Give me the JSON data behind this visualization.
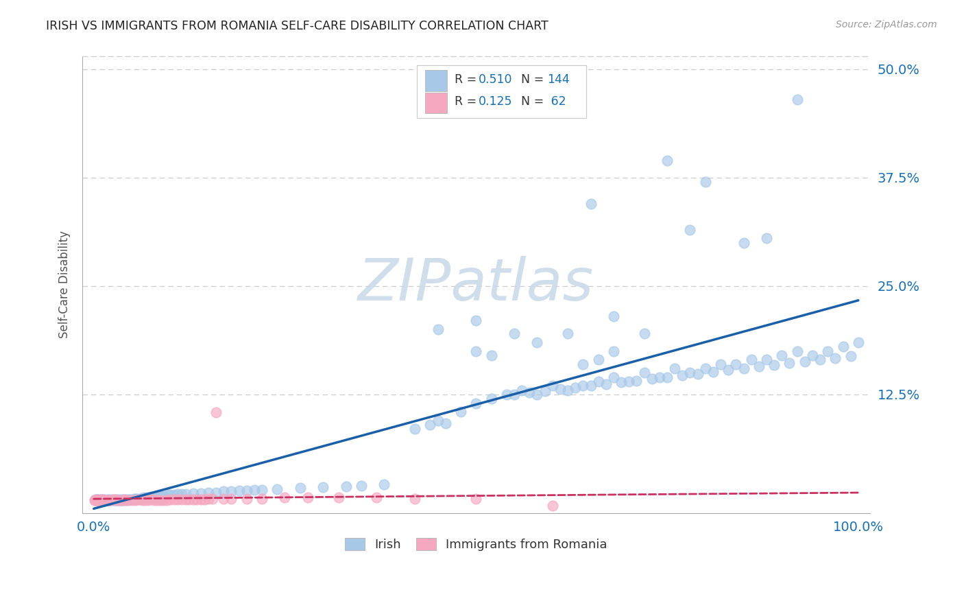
{
  "title": "IRISH VS IMMIGRANTS FROM ROMANIA SELF-CARE DISABILITY CORRELATION CHART",
  "source": "Source: ZipAtlas.com",
  "ylabel": "Self-Care Disability",
  "irish_R": 0.51,
  "irish_N": 144,
  "romania_R": 0.125,
  "romania_N": 62,
  "irish_color": "#a8c8e8",
  "irish_line_color": "#1a5fa8",
  "romania_color": "#f5a8c0",
  "romania_line_color": "#c83060",
  "axis_label_color": "#1a6faf",
  "title_color": "#222222",
  "source_color": "#999999",
  "grid_color": "#cccccc",
  "watermark_color": "#c8d8e8",
  "background_color": "#ffffff",
  "xlim": [
    -0.015,
    1.015
  ],
  "ylim": [
    -0.012,
    0.515
  ],
  "right_yticks": [
    0.125,
    0.25,
    0.375,
    0.5
  ],
  "right_ytick_labels": [
    "12.5%",
    "25.0%",
    "37.5%",
    "50.0%"
  ],
  "xtick_vals": [
    0.0,
    1.0
  ],
  "xtick_labels": [
    "0.0%",
    "100.0%"
  ],
  "legend_xtick_label": [
    "Irish",
    "Immigrants from Romania"
  ],
  "irish_x": [
    0.001,
    0.002,
    0.003,
    0.004,
    0.005,
    0.006,
    0.007,
    0.008,
    0.009,
    0.01,
    0.011,
    0.012,
    0.013,
    0.014,
    0.015,
    0.016,
    0.017,
    0.018,
    0.019,
    0.02,
    0.021,
    0.022,
    0.023,
    0.024,
    0.025,
    0.026,
    0.027,
    0.028,
    0.029,
    0.03,
    0.031,
    0.032,
    0.033,
    0.034,
    0.035,
    0.036,
    0.037,
    0.038,
    0.039,
    0.04,
    0.041,
    0.042,
    0.043,
    0.045,
    0.047,
    0.049,
    0.051,
    0.053,
    0.055,
    0.057,
    0.06,
    0.062,
    0.065,
    0.068,
    0.07,
    0.073,
    0.075,
    0.078,
    0.08,
    0.083,
    0.086,
    0.09,
    0.093,
    0.097,
    0.1,
    0.105,
    0.11,
    0.115,
    0.12,
    0.13,
    0.14,
    0.15,
    0.16,
    0.17,
    0.18,
    0.19,
    0.2,
    0.21,
    0.22,
    0.24,
    0.27,
    0.3,
    0.33,
    0.35,
    0.38,
    0.42,
    0.45,
    0.48,
    0.5,
    0.52,
    0.54,
    0.56,
    0.58,
    0.6,
    0.62,
    0.64,
    0.66,
    0.68,
    0.7,
    0.72,
    0.74,
    0.76,
    0.78,
    0.8,
    0.82,
    0.84,
    0.86,
    0.88,
    0.9,
    0.92,
    0.94,
    0.96,
    0.98,
    1.0,
    0.55,
    0.57,
    0.59,
    0.61,
    0.63,
    0.65,
    0.67,
    0.69,
    0.71,
    0.73,
    0.75,
    0.77,
    0.79,
    0.81,
    0.83,
    0.85,
    0.87,
    0.89,
    0.91,
    0.93,
    0.95,
    0.97,
    0.99,
    0.44,
    0.46
  ],
  "irish_y": [
    0.003,
    0.004,
    0.003,
    0.004,
    0.003,
    0.003,
    0.004,
    0.003,
    0.003,
    0.004,
    0.003,
    0.004,
    0.003,
    0.004,
    0.003,
    0.003,
    0.004,
    0.003,
    0.003,
    0.004,
    0.003,
    0.003,
    0.004,
    0.003,
    0.003,
    0.004,
    0.003,
    0.003,
    0.004,
    0.003,
    0.003,
    0.004,
    0.003,
    0.003,
    0.004,
    0.003,
    0.003,
    0.004,
    0.003,
    0.004,
    0.003,
    0.004,
    0.003,
    0.004,
    0.004,
    0.004,
    0.004,
    0.005,
    0.005,
    0.005,
    0.005,
    0.005,
    0.006,
    0.006,
    0.006,
    0.006,
    0.007,
    0.007,
    0.007,
    0.007,
    0.008,
    0.008,
    0.008,
    0.009,
    0.009,
    0.009,
    0.01,
    0.01,
    0.01,
    0.011,
    0.011,
    0.012,
    0.012,
    0.013,
    0.013,
    0.014,
    0.014,
    0.015,
    0.015,
    0.016,
    0.017,
    0.018,
    0.019,
    0.02,
    0.021,
    0.085,
    0.095,
    0.105,
    0.115,
    0.12,
    0.125,
    0.13,
    0.125,
    0.135,
    0.13,
    0.135,
    0.14,
    0.145,
    0.14,
    0.15,
    0.145,
    0.155,
    0.15,
    0.155,
    0.16,
    0.16,
    0.165,
    0.165,
    0.17,
    0.175,
    0.17,
    0.175,
    0.18,
    0.185,
    0.125,
    0.127,
    0.129,
    0.131,
    0.133,
    0.135,
    0.137,
    0.139,
    0.141,
    0.143,
    0.145,
    0.147,
    0.149,
    0.151,
    0.153,
    0.155,
    0.157,
    0.159,
    0.161,
    0.163,
    0.165,
    0.167,
    0.169,
    0.09,
    0.092
  ],
  "irish_outliers_x": [
    0.92,
    0.75,
    0.65,
    0.8,
    0.78,
    0.68,
    0.85,
    0.72,
    0.88
  ],
  "irish_outliers_y": [
    0.465,
    0.395,
    0.345,
    0.37,
    0.315,
    0.215,
    0.3,
    0.195,
    0.305
  ],
  "ireland_mid_x": [
    0.45,
    0.5,
    0.55,
    0.5,
    0.52,
    0.58,
    0.62,
    0.64,
    0.66,
    0.68
  ],
  "ireland_mid_y": [
    0.2,
    0.175,
    0.195,
    0.21,
    0.17,
    0.185,
    0.195,
    0.16,
    0.165,
    0.175
  ],
  "romania_x": [
    0.001,
    0.002,
    0.003,
    0.004,
    0.005,
    0.006,
    0.007,
    0.008,
    0.009,
    0.01,
    0.011,
    0.012,
    0.013,
    0.015,
    0.017,
    0.019,
    0.021,
    0.023,
    0.025,
    0.028,
    0.031,
    0.034,
    0.037,
    0.04,
    0.043,
    0.047,
    0.051,
    0.055,
    0.059,
    0.063,
    0.067,
    0.071,
    0.075,
    0.079,
    0.083,
    0.087,
    0.091,
    0.095,
    0.1,
    0.105,
    0.11,
    0.115,
    0.12,
    0.125,
    0.13,
    0.135,
    0.14,
    0.145,
    0.15,
    0.155,
    0.16,
    0.17,
    0.18,
    0.2,
    0.22,
    0.25,
    0.28,
    0.32,
    0.37,
    0.42,
    0.5,
    0.6
  ],
  "romania_y": [
    0.003,
    0.003,
    0.004,
    0.003,
    0.003,
    0.004,
    0.003,
    0.003,
    0.004,
    0.003,
    0.003,
    0.004,
    0.003,
    0.003,
    0.003,
    0.003,
    0.003,
    0.003,
    0.004,
    0.004,
    0.003,
    0.003,
    0.003,
    0.004,
    0.003,
    0.003,
    0.003,
    0.003,
    0.004,
    0.003,
    0.003,
    0.003,
    0.004,
    0.003,
    0.003,
    0.003,
    0.003,
    0.003,
    0.004,
    0.004,
    0.004,
    0.004,
    0.004,
    0.004,
    0.004,
    0.004,
    0.004,
    0.004,
    0.005,
    0.005,
    0.104,
    0.005,
    0.005,
    0.005,
    0.005,
    0.006,
    0.006,
    0.006,
    0.006,
    0.005,
    0.005,
    -0.003
  ],
  "marker_size": 110,
  "marker_alpha": 0.65
}
